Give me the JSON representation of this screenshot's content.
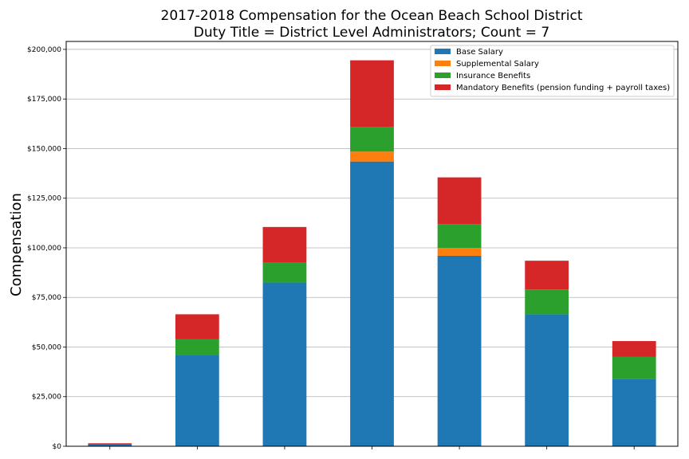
{
  "chart_data": {
    "type": "bar",
    "stacked": true,
    "title": [
      "2017-2018 Compensation for the Ocean Beach School District",
      "Duty Title = District Level Administrators; Count = 7"
    ],
    "ylabel": "Compensation",
    "xlabel": "",
    "ylim": [
      0,
      204000
    ],
    "yticks": [
      0,
      25000,
      50000,
      75000,
      100000,
      125000,
      150000,
      175000,
      200000
    ],
    "ytick_labels": [
      "$0",
      "$25,000",
      "$50,000",
      "$75,000",
      "$100,000",
      "$125,000",
      "$150,000",
      "$175,000",
      "$200,000"
    ],
    "grid": true,
    "legend_position": "top-right",
    "categories": [
      "",
      "",
      "",
      "",
      "",
      "",
      ""
    ],
    "series": [
      {
        "name": "Base Salary",
        "color": "#1f77b4",
        "values": [
          1000,
          46000,
          82500,
          143500,
          96000,
          66500,
          34000
        ]
      },
      {
        "name": "Supplemental Salary",
        "color": "#ff7f0e",
        "values": [
          0,
          0,
          0,
          5000,
          4000,
          0,
          0
        ]
      },
      {
        "name": "Insurance Benefits",
        "color": "#2ca02c",
        "values": [
          0,
          8000,
          10000,
          12500,
          12000,
          12500,
          11000
        ]
      },
      {
        "name": "Mandatory Benefits (pension funding + payroll taxes)",
        "color": "#d62728",
        "values": [
          500,
          12500,
          18000,
          33500,
          23500,
          14500,
          8000
        ]
      }
    ]
  }
}
